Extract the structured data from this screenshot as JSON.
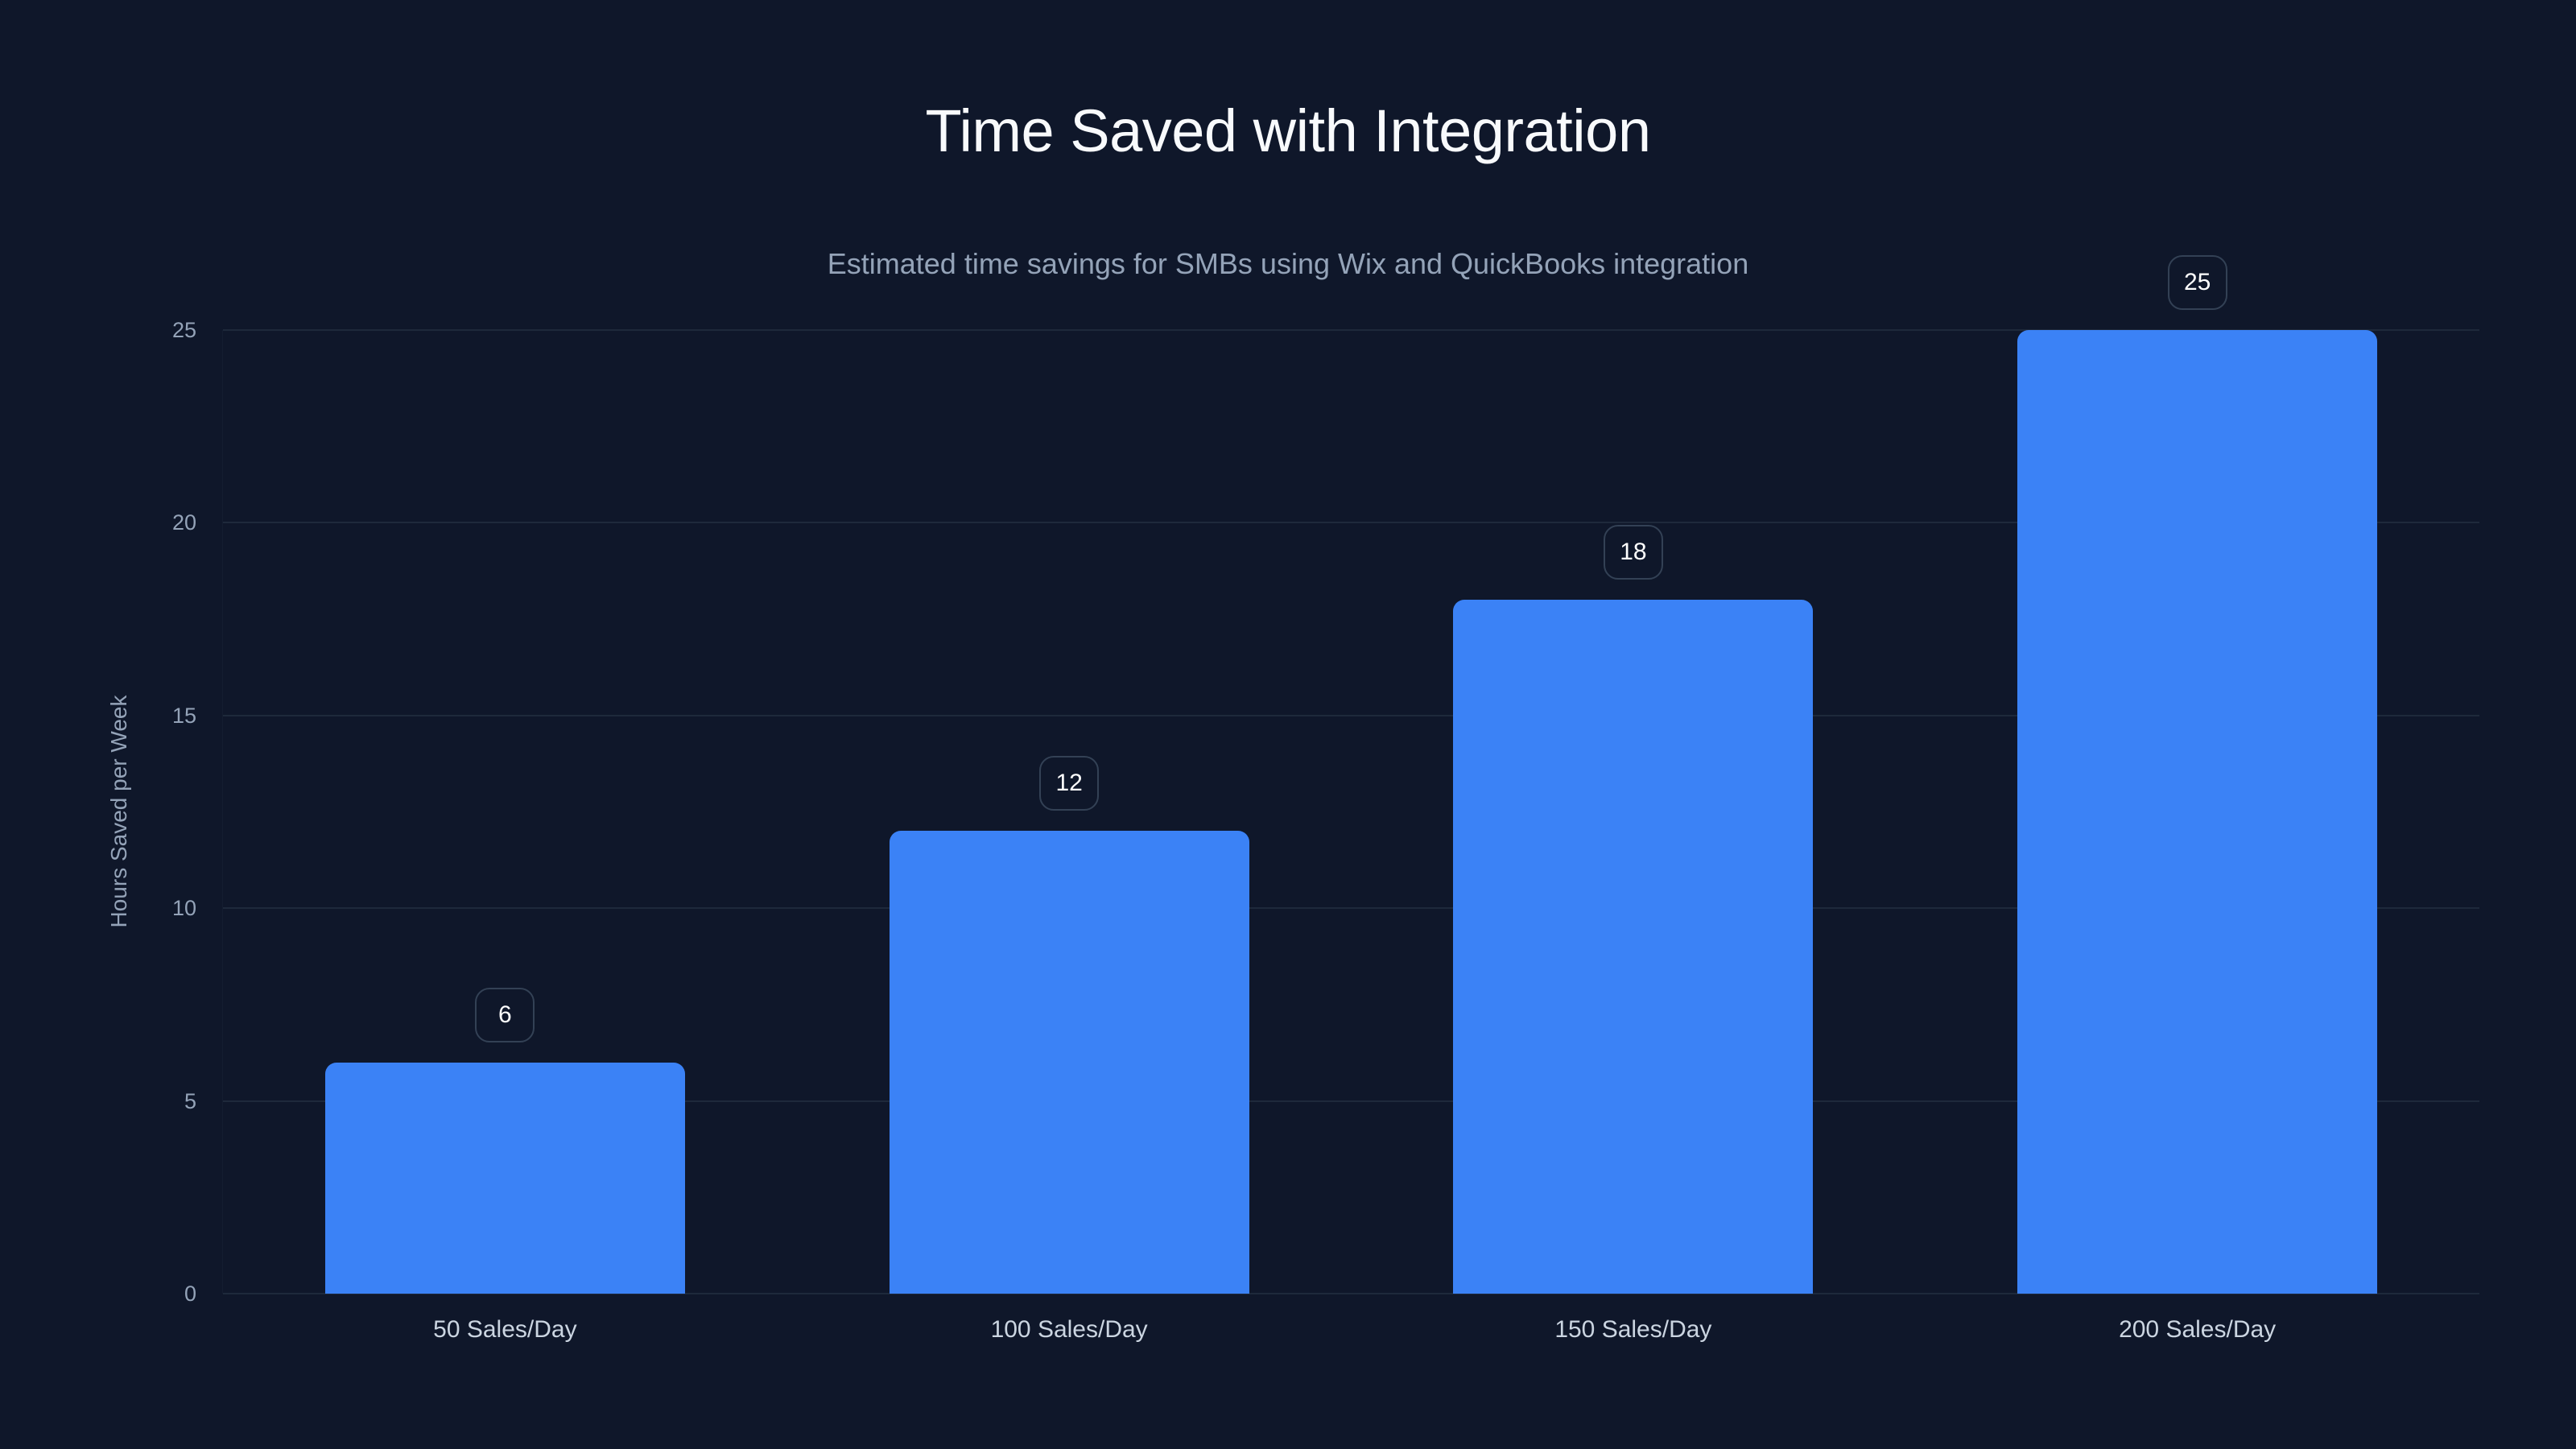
{
  "chart": {
    "title": "Time Saved with Integration",
    "subtitle": "Estimated time savings for SMBs using Wix and QuickBooks integration",
    "ylabel": "Hours Saved per Week",
    "yticks": [
      "0",
      "5",
      "10",
      "15",
      "20",
      "25"
    ],
    "bars": [
      {
        "category": "50 Sales/Day",
        "value": 6,
        "label": "6"
      },
      {
        "category": "100 Sales/Day",
        "value": 12,
        "label": "12"
      },
      {
        "category": "150 Sales/Day",
        "value": 18,
        "label": "18"
      },
      {
        "category": "200 Sales/Day",
        "value": 25,
        "label": "25"
      }
    ]
  },
  "colors": {
    "background": "#0f172a",
    "bar": "#3b82f6",
    "gridline": "#1e293b",
    "title": "#f8fafc",
    "subtitle": "#94a3b8",
    "tick_label": "#94a3b8",
    "category_label": "#cbd5e1",
    "value_label_border": "#334155"
  },
  "chart_data": {
    "type": "bar",
    "title": "Time Saved with Integration",
    "subtitle": "Estimated time savings for SMBs using Wix and QuickBooks integration",
    "categories": [
      "50 Sales/Day",
      "100 Sales/Day",
      "150 Sales/Day",
      "200 Sales/Day"
    ],
    "values": [
      6,
      12,
      18,
      25
    ],
    "xlabel": "",
    "ylabel": "Hours Saved per Week",
    "ylim": [
      0,
      25
    ],
    "yticks": [
      0,
      5,
      10,
      15,
      20,
      25
    ],
    "grid": true,
    "legend": null,
    "data_labels": true
  }
}
